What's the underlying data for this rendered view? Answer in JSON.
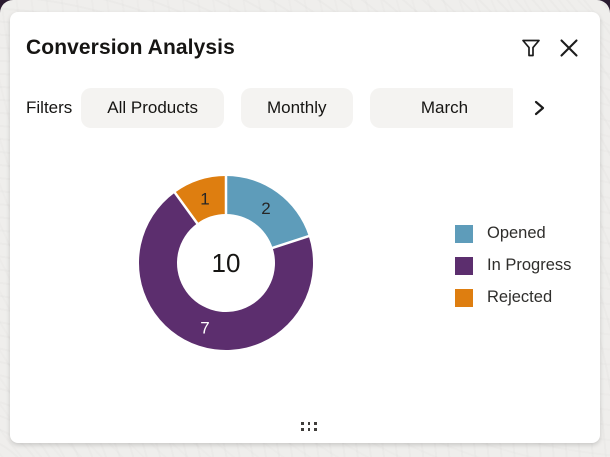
{
  "header": {
    "title": "Conversion Analysis",
    "filter_icon": "funnel-icon",
    "close_icon": "close-icon"
  },
  "filters": {
    "label": "Filters",
    "chips": [
      {
        "label": "All Products"
      },
      {
        "label": "Monthly"
      },
      {
        "label": "March"
      }
    ],
    "overflow_icon": "chevron-right-icon"
  },
  "chart_data": {
    "type": "pie",
    "subtype": "donut",
    "title": "Conversion Analysis",
    "labels": [
      "Opened",
      "In Progress",
      "Rejected"
    ],
    "values": [
      2,
      7,
      1
    ],
    "colors": [
      "#5E9CBA",
      "#5C2E6E",
      "#DE7E10"
    ],
    "value_label_colors": [
      "#262626",
      "#FFFFFF",
      "#262626"
    ],
    "center_label": "10",
    "total": 10,
    "legend_position": "right",
    "start_angle_deg": 0,
    "direction": "clockwise"
  },
  "footer": {
    "drag_handle_icon": "drag-handle-dots"
  },
  "colors": {
    "card_bg": "#FFFFFF",
    "page_bg": "#EFEEEC",
    "behind_page_bg": "#2A1B30",
    "chip_bg": "#F4F3F1",
    "text_primary": "#161513"
  }
}
